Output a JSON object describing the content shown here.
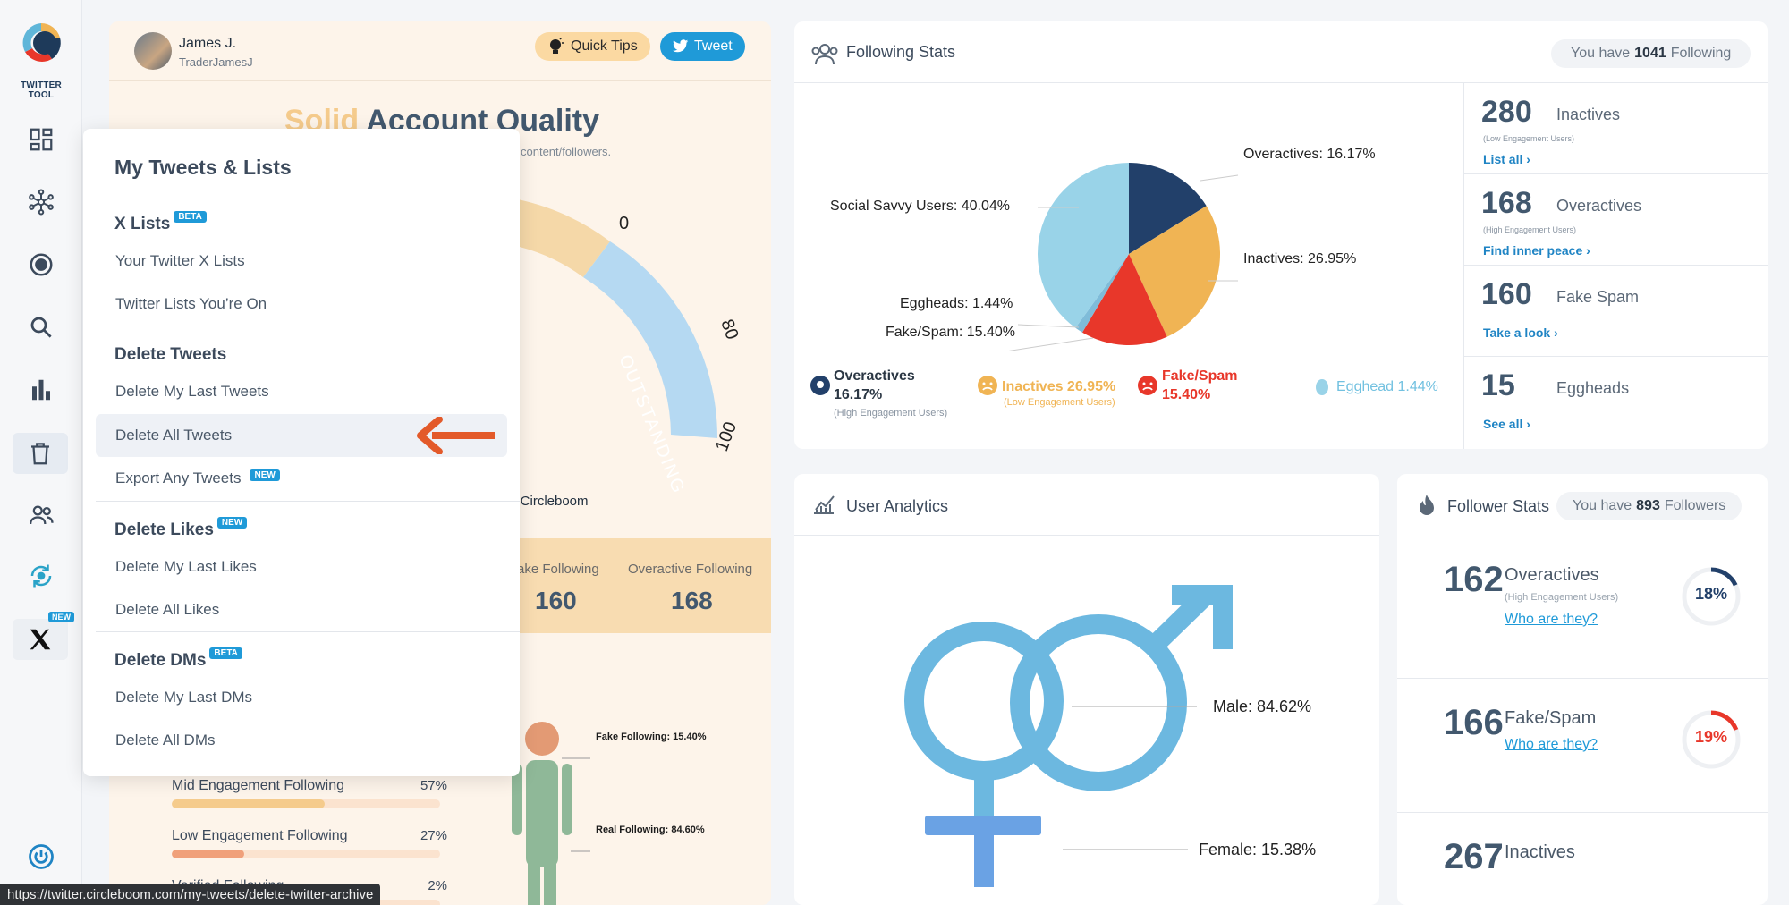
{
  "sidebar": {
    "logo_text": "TWITTER TOOL",
    "items": [
      {
        "name": "dashboard-icon"
      },
      {
        "name": "network-icon"
      },
      {
        "name": "target-icon"
      },
      {
        "name": "search-icon"
      },
      {
        "name": "bar-chart-icon"
      },
      {
        "name": "trash-icon"
      },
      {
        "name": "users-icon"
      },
      {
        "name": "refresh-icon"
      },
      {
        "name": "x-logo-icon"
      }
    ],
    "new_badge": "NEW"
  },
  "profile": {
    "name": "James J.",
    "handle": "TraderJamesJ",
    "quick_tips": "Quick Tips",
    "tweet": "Tweet"
  },
  "quality": {
    "title_solid": "Solid",
    "title_rest": "Account Quality",
    "subtitle": "content/followers.",
    "gauge_label": "OUTSTANDING",
    "tick_80": "80",
    "tick_100": "100",
    "tick_top": "0",
    "by_text": "y Circleboom"
  },
  "strip": {
    "fake_label": "ake Following",
    "fake_value": "160",
    "over_label": "Overactive Following",
    "over_value": "168"
  },
  "engagement": [
    {
      "label": "Mid Engagement Following",
      "pct": "57%",
      "value": 57,
      "color": "#f5cb8c"
    },
    {
      "label": "Low Engagement Following",
      "pct": "27%",
      "value": 27,
      "color": "#f0a07a"
    },
    {
      "label": "Verified Following",
      "pct": "2%",
      "value": 2,
      "color": "#9ac9e8"
    }
  ],
  "person": {
    "fake": "Fake Following: 15.40%",
    "real": "Real Following: 84.60%"
  },
  "dropdown": {
    "title": "My Tweets & Lists",
    "x_lists": "X Lists",
    "x_lists_badge": "BETA",
    "your_lists": "Your Twitter X Lists",
    "lists_on": "Twitter Lists You’re On",
    "delete_tweets": "Delete Tweets",
    "delete_last_tweets": "Delete My Last Tweets",
    "delete_all_tweets": "Delete All Tweets",
    "export_tweets": "Export Any Tweets",
    "export_badge": "NEW",
    "delete_likes": "Delete Likes",
    "likes_badge": "NEW",
    "delete_last_likes": "Delete My Last Likes",
    "delete_all_likes": "Delete All Likes",
    "delete_dms": "Delete DMs",
    "dms_badge": "BETA",
    "delete_last_dms": "Delete My Last DMs",
    "delete_all_dms": "Delete All DMs"
  },
  "following_stats": {
    "title": "Following Stats",
    "pill_pre": "You have",
    "pill_count": "1041",
    "pill_post": "Following",
    "pie_labels": {
      "overactives": "Overactives: 16.17%",
      "inactives": "Inactives: 26.95%",
      "social": "Social Savvy Users: 40.04%",
      "eggheads": "Eggheads: 1.44%",
      "fake": "Fake/Spam: 15.40%"
    },
    "legend": {
      "over": "Overactives",
      "over_pct": "16.17%",
      "over_sub": "(High Engagement Users)",
      "inact": "Inactives 26.95%",
      "inact_sub": "(Low Engagement Users)",
      "fake": "Fake/Spam",
      "fake_pct": "15.40%",
      "egg": "Egghead 1.44%"
    },
    "side": [
      {
        "num": "280",
        "name": "Inactives",
        "small": "(Low Engagement Users)",
        "link": "List all ›"
      },
      {
        "num": "168",
        "name": "Overactives",
        "small": "(High Engagement Users)",
        "link": "Find inner peace ›"
      },
      {
        "num": "160",
        "name": "Fake Spam",
        "small": "",
        "link": "Take a look ›"
      },
      {
        "num": "15",
        "name": "Eggheads",
        "small": "",
        "link": "See all ›"
      }
    ]
  },
  "user_analytics": {
    "title": "User Analytics",
    "male": "Male: 84.62%",
    "female": "Female: 15.38%"
  },
  "follower_stats": {
    "title": "Follower Stats",
    "pill_pre": "You have",
    "pill_count": "893",
    "pill_post": "Followers",
    "rows": [
      {
        "num": "162",
        "name": "Overactives",
        "small": "(High Engagement Users)",
        "link": "Who are they?",
        "pct": "18%",
        "value": 18
      },
      {
        "num": "166",
        "name": "Fake/Spam",
        "small": "",
        "link": "Who are they?",
        "pct": "19%",
        "value": 19
      },
      {
        "num": "267",
        "name": "Inactives",
        "small": "",
        "link": "",
        "pct": "",
        "value": 0
      }
    ]
  },
  "colors": {
    "navy": "#22406a",
    "orange": "#f0b454",
    "red": "#e8372a",
    "light_blue": "#99d3e8",
    "accent": "#1f9ad8"
  },
  "chart_data": {
    "type": "pie",
    "title": "Following Stats",
    "categories": [
      "Overactives",
      "Inactives",
      "Fake/Spam",
      "Eggheads",
      "Social Savvy Users"
    ],
    "values": [
      16.17,
      26.95,
      15.4,
      1.44,
      40.04
    ]
  },
  "status_url": "https://twitter.circleboom.com/my-tweets/delete-twitter-archive"
}
